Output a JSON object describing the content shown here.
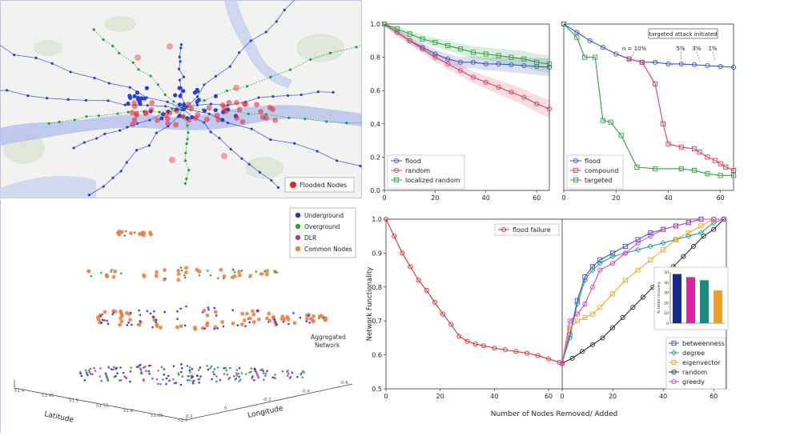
{
  "map_panel": {
    "legend_label": "Flooded Nodes",
    "colors": {
      "flooded": "#e8202a",
      "node": "#2a3fd6",
      "overground": "#20a040",
      "river": "#b7c2ec"
    }
  },
  "network_3d": {
    "legend": [
      {
        "label": "Underground",
        "color": "#2a2ad6"
      },
      {
        "label": "Overground",
        "color": "#22aa33"
      },
      {
        "label": "DLR",
        "color": "#a040b0"
      },
      {
        "label": "Common Nodes",
        "color": "#f08040"
      }
    ],
    "aggregated_label_1": "Aggregated",
    "aggregated_label_2": "Network",
    "latitude_label": "Latitude",
    "longitude_label": "Longitude",
    "lat_ticks": [
      "51.4",
      "51.45",
      "51.5",
      "51.55",
      "51.6",
      "51.65",
      "51.7"
    ],
    "lon_ticks": [
      "0.2",
      "0",
      "-0.2",
      "-0.4",
      "-0.6"
    ]
  },
  "chart_data": [
    {
      "type": "line",
      "x_ticks": [
        "0",
        "20",
        "40",
        "60"
      ],
      "y_ticks": [
        "0.0",
        "0.2",
        "0.4",
        "0.6",
        "0.8",
        "1.0"
      ],
      "xlim": [
        0,
        65
      ],
      "ylim": [
        0,
        1.0
      ],
      "legend_position": "lower-left",
      "series": [
        {
          "name": "flood",
          "color": "#4050c8",
          "marker": "circle",
          "x": [
            0,
            5,
            10,
            15,
            20,
            25,
            30,
            35,
            40,
            45,
            50,
            55,
            60,
            65
          ],
          "y": [
            1.0,
            0.95,
            0.9,
            0.86,
            0.82,
            0.79,
            0.77,
            0.77,
            0.76,
            0.76,
            0.755,
            0.75,
            0.745,
            0.74
          ]
        },
        {
          "name": "random",
          "color": "#d84060",
          "marker": "circle",
          "x": [
            0,
            5,
            10,
            15,
            20,
            25,
            30,
            35,
            40,
            45,
            50,
            55,
            60,
            65
          ],
          "y": [
            1.0,
            0.95,
            0.9,
            0.85,
            0.8,
            0.76,
            0.72,
            0.68,
            0.65,
            0.62,
            0.59,
            0.56,
            0.52,
            0.49
          ]
        },
        {
          "name": "localized random",
          "color": "#30a040",
          "marker": "square",
          "x": [
            0,
            5,
            10,
            15,
            20,
            25,
            30,
            35,
            40,
            45,
            50,
            55,
            60,
            65
          ],
          "y": [
            1.0,
            0.97,
            0.94,
            0.91,
            0.89,
            0.87,
            0.85,
            0.83,
            0.82,
            0.81,
            0.8,
            0.79,
            0.77,
            0.76
          ]
        }
      ]
    },
    {
      "type": "line",
      "x_ticks": [
        "0",
        "20",
        "40",
        "60"
      ],
      "xlim": [
        0,
        65
      ],
      "ylim": [
        0,
        1.0
      ],
      "legend_position": "lower-left",
      "annotations": [
        "targeted attack initiated",
        "n = 10%",
        "5%",
        "3%",
        "1%"
      ],
      "series": [
        {
          "name": "flood",
          "color": "#4050c8",
          "marker": "circle",
          "x": [
            0,
            5,
            10,
            15,
            20,
            25,
            30,
            35,
            40,
            45,
            50,
            55,
            60,
            65
          ],
          "y": [
            1.0,
            0.95,
            0.9,
            0.86,
            0.82,
            0.79,
            0.77,
            0.77,
            0.76,
            0.76,
            0.755,
            0.75,
            0.745,
            0.74
          ]
        },
        {
          "name": "compound",
          "color": "#d84060",
          "marker": "square",
          "x": [
            25,
            30,
            35,
            38,
            40,
            45,
            50,
            52,
            55,
            58,
            60,
            62,
            65
          ],
          "y": [
            0.79,
            0.77,
            0.64,
            0.4,
            0.28,
            0.26,
            0.25,
            0.23,
            0.2,
            0.18,
            0.16,
            0.14,
            0.12
          ]
        },
        {
          "name": "targeted",
          "color": "#30a040",
          "marker": "square",
          "x": [
            0,
            5,
            8,
            12,
            15,
            18,
            22,
            28,
            35,
            45,
            50,
            55,
            60,
            65
          ],
          "y": [
            1.0,
            0.92,
            0.8,
            0.8,
            0.42,
            0.41,
            0.33,
            0.14,
            0.13,
            0.13,
            0.12,
            0.1,
            0.09,
            0.09
          ]
        }
      ]
    },
    {
      "type": "line",
      "ylabel": "Network Functionality",
      "xlabel": "Number of Nodes Removed/ Added",
      "y_ticks": [
        "0.5",
        "0.6",
        "0.7",
        "0.8",
        "0.9",
        "1.0"
      ],
      "x_ticks_left": [
        "0",
        "20",
        "40",
        "60"
      ],
      "x_ticks_right": [
        "0",
        "20",
        "40",
        "60"
      ],
      "ylim": [
        0.5,
        1.0
      ],
      "legend_left": "flood failure",
      "left_series": {
        "name": "flood failure",
        "color": "#e03030",
        "x": [
          0,
          3,
          6,
          9,
          12,
          15,
          18,
          21,
          24,
          27,
          30,
          33,
          36,
          40,
          44,
          48,
          52,
          56,
          60,
          64
        ],
        "y": [
          1.0,
          0.95,
          0.9,
          0.86,
          0.82,
          0.79,
          0.755,
          0.72,
          0.69,
          0.655,
          0.64,
          0.632,
          0.627,
          0.62,
          0.615,
          0.61,
          0.605,
          0.598,
          0.588,
          0.578
        ]
      },
      "right_series": [
        {
          "name": "betweenness",
          "color": "#4050c8",
          "marker": "square",
          "x": [
            0,
            3,
            6,
            9,
            12,
            15,
            20,
            25,
            30,
            35,
            40,
            45,
            50,
            55,
            60,
            64
          ],
          "y": [
            0.575,
            0.66,
            0.76,
            0.83,
            0.86,
            0.88,
            0.9,
            0.92,
            0.94,
            0.96,
            0.97,
            0.98,
            0.99,
            1.0,
            1.0,
            1.0
          ]
        },
        {
          "name": "degree",
          "color": "#30a0a0",
          "marker": "diamond",
          "x": [
            0,
            3,
            6,
            9,
            12,
            15,
            20,
            25,
            30,
            35,
            40,
            45,
            50,
            55,
            60,
            64
          ],
          "y": [
            0.575,
            0.65,
            0.75,
            0.82,
            0.85,
            0.87,
            0.89,
            0.9,
            0.91,
            0.92,
            0.93,
            0.94,
            0.95,
            0.96,
            0.99,
            1.0
          ]
        },
        {
          "name": "eigenvector",
          "color": "#f0a830",
          "marker": "square",
          "x": [
            0,
            3,
            6,
            9,
            12,
            15,
            20,
            25,
            30,
            35,
            40,
            45,
            50,
            55,
            60,
            64
          ],
          "y": [
            0.575,
            0.68,
            0.7,
            0.71,
            0.72,
            0.74,
            0.78,
            0.82,
            0.85,
            0.88,
            0.91,
            0.94,
            0.96,
            0.98,
            1.0,
            1.0
          ]
        },
        {
          "name": "random",
          "color": "#303030",
          "marker": "circle",
          "x": [
            0,
            4,
            8,
            12,
            16,
            20,
            24,
            28,
            32,
            36,
            40,
            44,
            48,
            52,
            56,
            60,
            64
          ],
          "y": [
            0.575,
            0.59,
            0.61,
            0.63,
            0.65,
            0.68,
            0.71,
            0.74,
            0.77,
            0.8,
            0.83,
            0.86,
            0.89,
            0.92,
            0.95,
            0.97,
            1.0
          ]
        },
        {
          "name": "greedy",
          "color": "#e040c0",
          "marker": "circle",
          "x": [
            0,
            3,
            6,
            9,
            12,
            15,
            20,
            25,
            30,
            35,
            40,
            45,
            50,
            55,
            60,
            64
          ],
          "y": [
            0.575,
            0.7,
            0.72,
            0.75,
            0.8,
            0.85,
            0.87,
            0.9,
            0.93,
            0.95,
            0.97,
            0.98,
            0.99,
            1.0,
            1.0,
            1.0
          ]
        }
      ],
      "inset": {
        "type": "bar",
        "ylabel": "% faster recovery",
        "y_ticks": [
          "0",
          "10",
          "20",
          "30",
          "40",
          "50"
        ],
        "ylim": [
          0,
          50
        ],
        "values": [
          48,
          45,
          42,
          32
        ],
        "colors": [
          "#1a2a8a",
          "#e020a0",
          "#208a80",
          "#f0a020"
        ]
      }
    }
  ]
}
